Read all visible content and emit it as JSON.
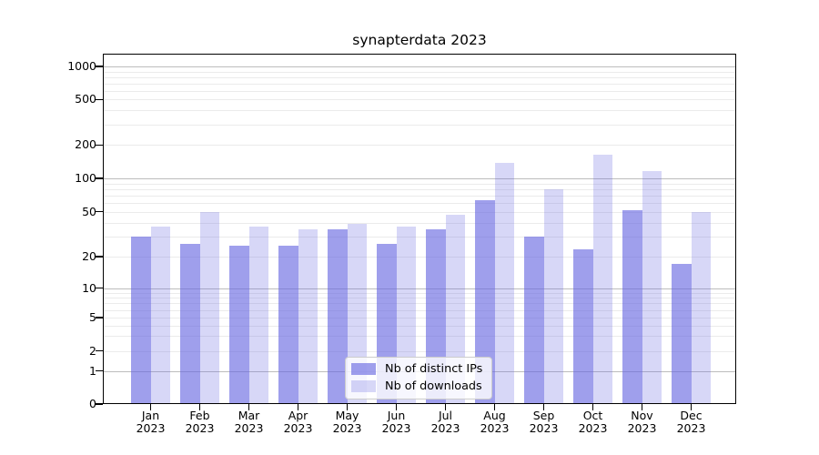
{
  "window": {
    "title": "synapterdata 2023"
  },
  "chart_data": {
    "type": "bar",
    "title": "synapterdata 2023",
    "categories": [
      "Jan 2023",
      "Feb 2023",
      "Mar 2023",
      "Apr 2023",
      "May 2023",
      "Jun 2023",
      "Jul 2023",
      "Aug 2023",
      "Sep 2023",
      "Oct 2023",
      "Nov 2023",
      "Dec 2023"
    ],
    "series": [
      {
        "name": "Nb of distinct IPs",
        "color": "#a0a0ee",
        "color_rgba": "rgba(100,100,225,0.62)",
        "values": [
          30,
          26,
          25,
          25,
          35,
          26,
          35,
          63,
          30,
          23,
          52,
          17
        ]
      },
      {
        "name": "Nb of downloads",
        "color": "#d8d8f7",
        "color_rgba": "rgba(100,100,225,0.26)",
        "values": [
          37,
          50,
          37,
          35,
          39,
          37,
          47,
          138,
          79,
          162,
          117,
          50
        ]
      }
    ],
    "yscale": "symlog",
    "y_ticks": [
      0,
      1,
      2,
      5,
      10,
      20,
      50,
      100,
      200,
      500,
      1000
    ],
    "ylim": [
      0,
      1300
    ],
    "xlabel": "",
    "ylabel": "",
    "grid": "both",
    "legend_position": "lower center"
  },
  "colors": {
    "grid_major": "#bdbdbd",
    "grid_minor": "#ebebeb",
    "axis": "#000000",
    "background": "#ffffff"
  }
}
